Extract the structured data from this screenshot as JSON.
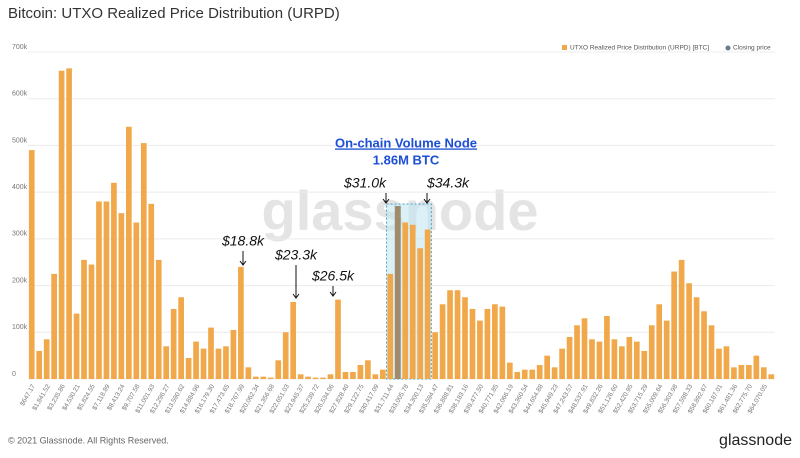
{
  "chart_data": {
    "type": "bar",
    "title": "Bitcoin: UTXO Realized Price Distribution (URPD)",
    "series_name": "UTXO Realized Price Distribution (URPD) [BTC]",
    "closing_price_name": "Closing price",
    "color": "#f0a84a",
    "closing_color": "#6b7a86",
    "annotations": [
      "On-chain Volume Node",
      "1.86M BTC",
      "$31.0k",
      "$34.3k",
      "$18.8k",
      "$23.3k",
      "$26.5k"
    ],
    "watermark": "glassnode",
    "footer": "© 2021 Glassnode. All Rights Reserved.",
    "logo": "glassnode",
    "categories": [
      "$647.17",
      null,
      "$1,841.52",
      null,
      "$3,235.86",
      null,
      "$4,530.21",
      null,
      "$5,824.55",
      null,
      "$7,118.89",
      null,
      "$8,413.24",
      null,
      "$9,707.58",
      null,
      "$11,001.93",
      null,
      "$12,296.27",
      null,
      "$13,590.62",
      null,
      "$14,884.96",
      null,
      "$16,179.30",
      null,
      "$17,473.65",
      null,
      "$18,767.99",
      null,
      "$20,062.34",
      null,
      "$21,356.68",
      null,
      "$22,651.03",
      null,
      "$23,945.37",
      null,
      "$25,239.72",
      null,
      "$26,534.06",
      null,
      "$27,828.40",
      null,
      "$29,122.75",
      null,
      "$30,417.09",
      null,
      "$31,711.44",
      null,
      "$33,005.78",
      null,
      "$34,300.13",
      null,
      "$35,594.47",
      null,
      "$36,888.81",
      null,
      "$38,183.16",
      null,
      "$39,477.50",
      null,
      "$40,771.85",
      null,
      "$42,066.19",
      null,
      "$43,360.54",
      null,
      "$44,654.88",
      null,
      "$45,949.23",
      null,
      "$47,243.57",
      null,
      "$48,537.91",
      null,
      "$49,832.26",
      null,
      "$51,126.60",
      null,
      "$52,420.95",
      null,
      "$53,715.29",
      null,
      "$55,009.64",
      null,
      "$56,303.98",
      null,
      "$57,598.33",
      null,
      "$58,892.67",
      null,
      "$60,187.01",
      null,
      "$61,481.36",
      null,
      "$62,775.70",
      null,
      "$64,070.05",
      null
    ],
    "values": [
      490000,
      60000,
      85000,
      225000,
      660000,
      665000,
      140000,
      255000,
      245000,
      380000,
      380000,
      420000,
      355000,
      540000,
      335000,
      505000,
      375000,
      255000,
      70000,
      150000,
      175000,
      45000,
      80000,
      65000,
      110000,
      65000,
      70000,
      105000,
      240000,
      25000,
      5000,
      5000,
      3000,
      40000,
      100000,
      165000,
      10000,
      5000,
      3000,
      3000,
      10000,
      170000,
      15000,
      15000,
      30000,
      40000,
      10000,
      20000,
      225000,
      370000,
      335000,
      330000,
      280000,
      320000,
      100000,
      160000,
      190000,
      190000,
      175000,
      150000,
      125000,
      150000,
      160000,
      155000,
      35000,
      15000,
      20000,
      20000,
      30000,
      50000,
      25000,
      65000,
      90000,
      115000,
      130000,
      85000,
      80000,
      135000,
      85000,
      70000,
      90000,
      80000,
      60000,
      115000,
      160000,
      125000,
      230000,
      255000,
      205000,
      175000,
      145000,
      115000,
      65000,
      70000,
      25000,
      30000,
      30000,
      50000,
      25000,
      10000
    ],
    "ylim": [
      0,
      700000
    ],
    "yticks": [
      0,
      {
        "value": 100000,
        "label": "100k"
      },
      {
        "value": 200000,
        "label": "200k"
      },
      {
        "value": 300000,
        "label": "300k"
      },
      {
        "value": 400000,
        "label": "400k"
      },
      {
        "value": 500000,
        "label": "500k"
      },
      {
        "value": 600000,
        "label": "600k"
      },
      {
        "value": 700000,
        "label": "700k"
      }
    ],
    "grid": true
  }
}
